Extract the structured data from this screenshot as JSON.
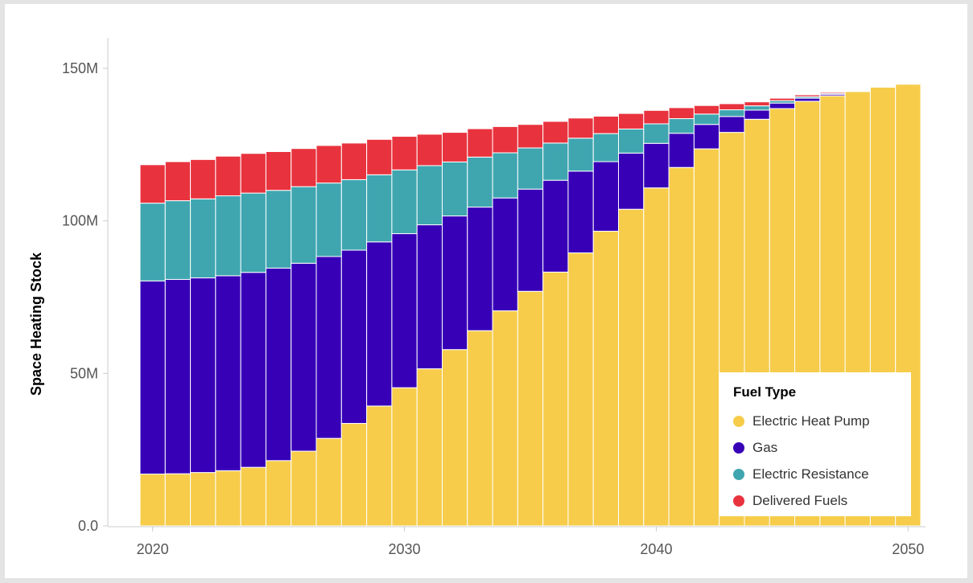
{
  "chart_data": {
    "type": "bar",
    "stacked": true,
    "ylabel": "Space Heating Stock",
    "xlabel": "",
    "x": [
      2020,
      2021,
      2022,
      2023,
      2024,
      2025,
      2026,
      2027,
      2028,
      2029,
      2030,
      2031,
      2032,
      2033,
      2034,
      2035,
      2036,
      2037,
      2038,
      2039,
      2040,
      2041,
      2042,
      2043,
      2044,
      2045,
      2046,
      2047,
      2048,
      2049,
      2050
    ],
    "ylim": [
      0,
      160000000
    ],
    "xlim": [
      2019.5,
      2050.5
    ],
    "y_ticks": [
      {
        "value": 0,
        "label": "0.0"
      },
      {
        "value": 50000000,
        "label": "50M"
      },
      {
        "value": 100000000,
        "label": "100M"
      },
      {
        "value": 150000000,
        "label": "150M"
      }
    ],
    "x_ticks": [
      {
        "value": 2020,
        "label": "2020"
      },
      {
        "value": 2030,
        "label": "2030"
      },
      {
        "value": 2040,
        "label": "2040"
      },
      {
        "value": 2050,
        "label": "2050"
      }
    ],
    "series": [
      {
        "name": "Electric Heat Pump",
        "color": "#F6CC4A",
        "values": [
          17.0,
          17.1,
          17.5,
          18.1,
          19.2,
          21.4,
          24.5,
          28.7,
          33.6,
          39.3,
          45.3,
          51.5,
          57.8,
          64.0,
          70.5,
          76.9,
          83.2,
          89.5,
          96.6,
          103.8,
          110.8,
          117.5,
          123.6,
          129.0,
          133.3,
          136.8,
          139.2,
          141.0,
          142.4,
          143.8,
          144.8
        ]
      },
      {
        "name": "Gas",
        "color": "#3700B7",
        "values": [
          63.3,
          63.7,
          63.8,
          63.9,
          63.9,
          63.1,
          61.6,
          59.6,
          56.8,
          53.8,
          50.5,
          47.2,
          43.8,
          40.5,
          37.0,
          33.5,
          30.1,
          26.8,
          22.8,
          18.4,
          14.6,
          11.2,
          8.0,
          5.2,
          3.0,
          1.8,
          1.0,
          0.5,
          0.2,
          0.1,
          0.0
        ]
      },
      {
        "name": "Electric Resistance",
        "color": "#3FA6B0",
        "values": [
          25.5,
          25.8,
          25.9,
          26.2,
          26.0,
          25.5,
          25.1,
          24.1,
          23.1,
          22.0,
          20.9,
          19.4,
          17.7,
          16.4,
          14.8,
          13.5,
          12.2,
          10.8,
          9.2,
          7.9,
          6.4,
          4.8,
          3.4,
          2.2,
          1.4,
          0.8,
          0.5,
          0.3,
          0.2,
          0.1,
          0.0
        ]
      },
      {
        "name": "Delivered Fuels",
        "color": "#E8333E",
        "values": [
          12.6,
          12.8,
          12.9,
          13.0,
          13.0,
          12.7,
          12.5,
          12.3,
          12.0,
          11.6,
          11.0,
          10.3,
          9.7,
          9.3,
          8.6,
          7.7,
          7.1,
          6.6,
          5.7,
          5.1,
          4.4,
          3.6,
          2.8,
          2.0,
          1.3,
          0.8,
          0.6,
          0.4,
          0.2,
          0.2,
          0.1
        ]
      }
    ],
    "legend": {
      "title": "Fuel Type",
      "placement": "bottom-right"
    },
    "grid": false
  }
}
